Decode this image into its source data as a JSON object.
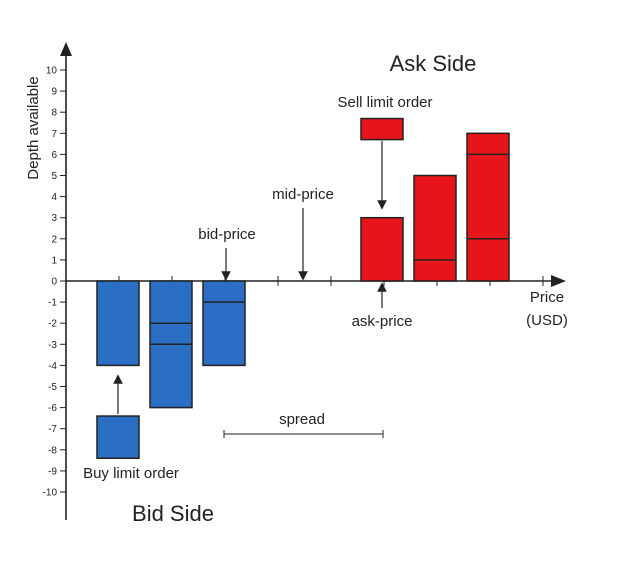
{
  "title_ask": "Ask Side",
  "title_bid": "Bid Side",
  "y_axis_label": "Depth available",
  "x_axis_label_line1": "Price",
  "x_axis_label_line2": "(USD)",
  "y_ticks": [
    "10",
    "9",
    "8",
    "7",
    "6",
    "5",
    "4",
    "3",
    "2",
    "1",
    "0",
    "-1",
    "-2",
    "-3",
    "-4",
    "-5",
    "-6",
    "-7",
    "-8",
    "-9",
    "-10"
  ],
  "annotations": {
    "sell_limit_order": "Sell limit order",
    "buy_limit_order": "Buy limit order",
    "bid_price": "bid-price",
    "mid_price": "mid-price",
    "ask_price": "ask-price",
    "spread": "spread"
  },
  "colors": {
    "ask": "#e8141b",
    "bid": "#2a6fc4",
    "axis": "#222222"
  },
  "chart_data": {
    "type": "bar",
    "ylim": [
      -10,
      10
    ],
    "ask_bars": [
      {
        "level": 1,
        "depth": 3,
        "divisions": []
      },
      {
        "level": 2,
        "depth": 5,
        "divisions": [
          1
        ]
      },
      {
        "level": 3,
        "depth": 7,
        "divisions": [
          2,
          6
        ]
      }
    ],
    "bid_bars": [
      {
        "level": 1,
        "depth": -4,
        "divisions": []
      },
      {
        "level": 2,
        "depth": -6,
        "divisions": [
          -2,
          -3
        ]
      },
      {
        "level": 3,
        "depth": -4,
        "divisions": [
          -1
        ]
      }
    ],
    "sell_limit_order": {
      "depth": 1,
      "from": 6.7,
      "to": 7.7
    },
    "buy_limit_order": {
      "depth": 2,
      "from": -6.4,
      "to": -8.4
    }
  }
}
